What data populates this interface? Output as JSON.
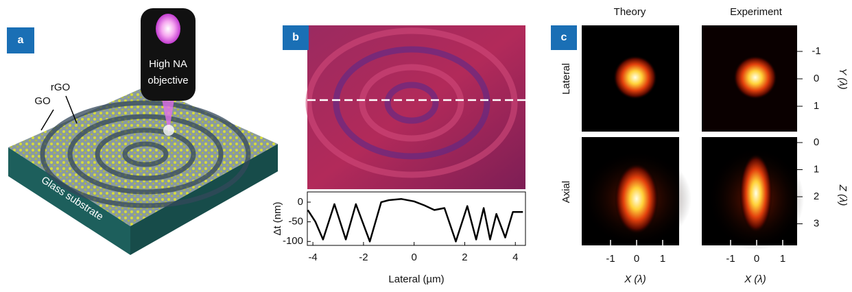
{
  "panels": {
    "a": {
      "label": "a",
      "go": "GO",
      "rgo": "rGO",
      "objective": [
        "High NA",
        "objective"
      ],
      "substrate": "Glass substrate"
    },
    "b": {
      "label": "b"
    },
    "c": {
      "label": "c",
      "column_titles": [
        "Theory",
        "Experiment"
      ],
      "row_titles": [
        "Lateral",
        "Axial"
      ],
      "x_axis_label": "X (λ)",
      "y_axis_label": "Y (λ)",
      "z_axis_label": "Z (λ)",
      "xticks": [
        -1,
        0,
        1
      ],
      "yticks": [
        -1,
        0,
        1
      ],
      "zticks": [
        0,
        1,
        2,
        3
      ]
    }
  },
  "chart_data": {
    "type": "line",
    "xlabel": "Lateral (µm)",
    "ylabel": "Δt (nm)",
    "color": "#000000",
    "x": [
      -4.2,
      -3.9,
      -3.6,
      -3.15,
      -2.7,
      -2.3,
      -1.75,
      -1.3,
      -1.0,
      -0.5,
      0.0,
      0.4,
      0.8,
      1.2,
      1.65,
      2.1,
      2.45,
      2.75,
      3.0,
      3.25,
      3.6,
      3.9,
      4.3
    ],
    "values": [
      -20,
      -50,
      -95,
      -5,
      -95,
      -5,
      -100,
      0,
      5,
      8,
      2,
      -8,
      -20,
      -15,
      -100,
      -10,
      -95,
      -15,
      -95,
      -30,
      -90,
      -25,
      -25
    ],
    "xlim": [
      -4.22,
      4.4
    ],
    "ylim": [
      -110,
      26
    ],
    "xticks": [
      -4,
      -2,
      0,
      2,
      4
    ],
    "yticks": [
      -100,
      -50,
      0
    ]
  }
}
